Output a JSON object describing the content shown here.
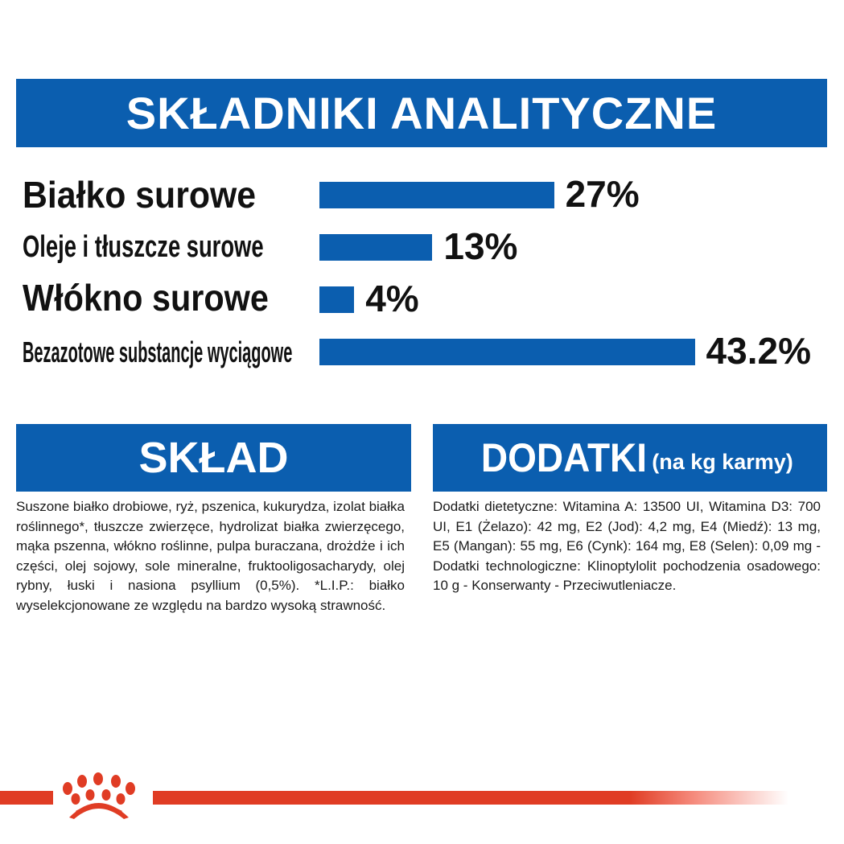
{
  "title": "SKŁADNIKI ANALITYCZNE",
  "brand_color": "#0b5eaf",
  "accent_red": "#e03c24",
  "chart_data": {
    "type": "bar",
    "categories": [
      "Białko surowe",
      "Oleje i tłuszcze surowe",
      "Włókno surowe",
      "Bezazotowe substancje wyciągowe"
    ],
    "values": [
      27,
      13,
      4,
      43.2
    ],
    "value_labels": [
      "27%",
      "13%",
      "4%",
      "43.2%"
    ],
    "orientation": "horizontal"
  },
  "sklad": {
    "heading": "SKŁAD",
    "text": "Suszone białko drobiowe, ryż, pszenica, kukurydza, izolat białka roślinnego*, tłuszcze zwierzęce, hydrolizat białka zwierzęcego, mąka pszenna, włókno roślinne, pulpa buraczana, drożdże i ich części, olej sojowy, sole mineralne, fruktooligosacharydy, olej rybny, łuski i nasiona psyllium (0,5%). *L.I.P.: białko wyselekcjonowane ze względu na bardzo wysoką strawność."
  },
  "dodatki": {
    "heading": "DODATKI",
    "subheading": "(na kg karmy)",
    "text": "Dodatki dietetyczne: Witamina A: 13500 UI, Witamina D3: 700 UI, E1 (Żelazo): 42 mg, E2 (Jod): 4,2 mg, E4 (Miedź): 13 mg, E5 (Mangan): 55 mg, E6 (Cynk): 164 mg, E8 (Selen): 0,09 mg - Dodatki technologiczne: Klinoptylolit pochodzenia osadowego: 10 g - Konserwanty - Przeciwutleniacze."
  },
  "footer": {
    "logo_icon": "royal-canin-crown-paw-icon"
  }
}
